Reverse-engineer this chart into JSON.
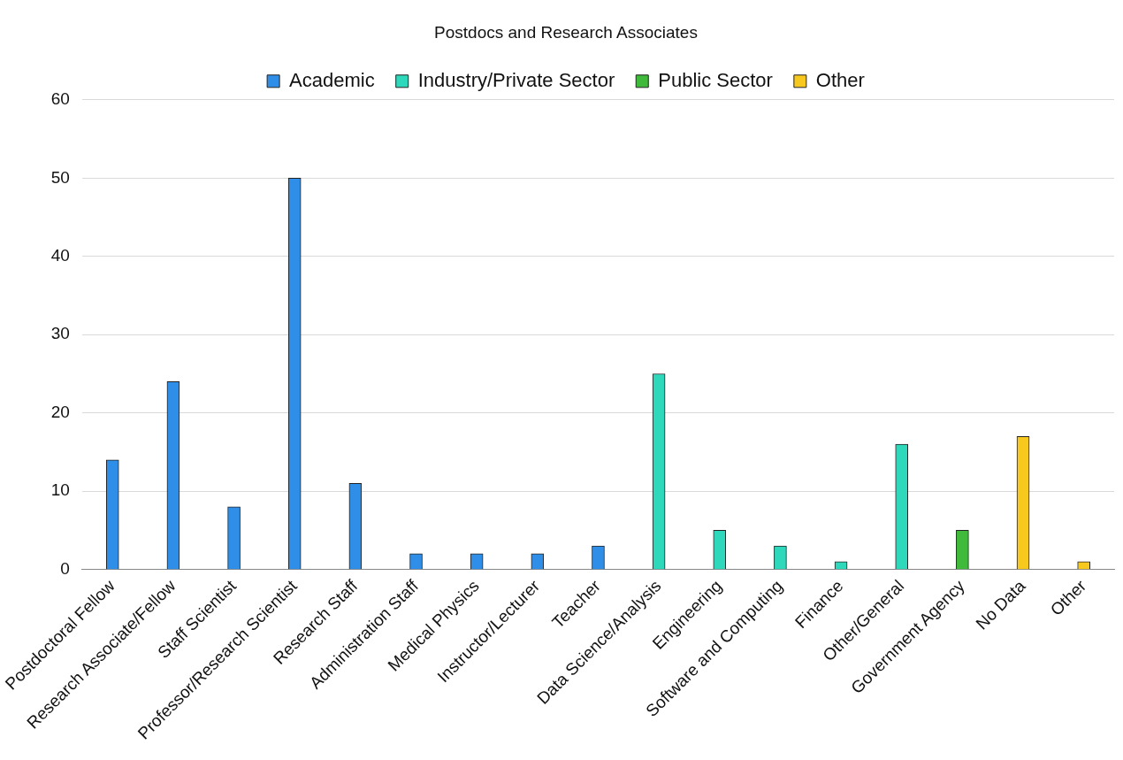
{
  "chart_data": {
    "type": "bar",
    "title": "Postdocs and Research Associates",
    "categories": [
      "Postdoctoral Fellow",
      "Research Associate/Fellow",
      "Staff Scientist",
      "Professor/Research Scientist",
      "Research Staff",
      "Administration Staff",
      "Medical Physics",
      "Instructor/Lecturer",
      "Teacher",
      "Data Science/Analysis",
      "Engineering",
      "Software and Computing",
      "Finance",
      "Other/General",
      "Government Agency",
      "No Data",
      "Other"
    ],
    "series": [
      {
        "name": "Academic",
        "color": "#2f8fe8",
        "values": [
          14,
          24,
          8,
          50,
          11,
          2,
          2,
          2,
          3,
          null,
          null,
          null,
          null,
          null,
          null,
          null,
          null
        ]
      },
      {
        "name": "Industry/Private Sector",
        "color": "#2ed8bb",
        "values": [
          null,
          null,
          null,
          null,
          null,
          null,
          null,
          null,
          null,
          25,
          5,
          3,
          1,
          16,
          null,
          null,
          null
        ]
      },
      {
        "name": "Public Sector",
        "color": "#3fba3a",
        "values": [
          null,
          null,
          null,
          null,
          null,
          null,
          null,
          null,
          null,
          null,
          null,
          null,
          null,
          null,
          5,
          null,
          null
        ]
      },
      {
        "name": "Other",
        "color": "#f7c81e",
        "values": [
          null,
          null,
          null,
          null,
          null,
          null,
          null,
          null,
          null,
          null,
          null,
          null,
          null,
          null,
          null,
          17,
          1
        ]
      }
    ],
    "ylim": [
      0,
      60
    ],
    "yticks": [
      0,
      10,
      20,
      30,
      40,
      50,
      60
    ],
    "grid": "y",
    "legend": "top"
  }
}
